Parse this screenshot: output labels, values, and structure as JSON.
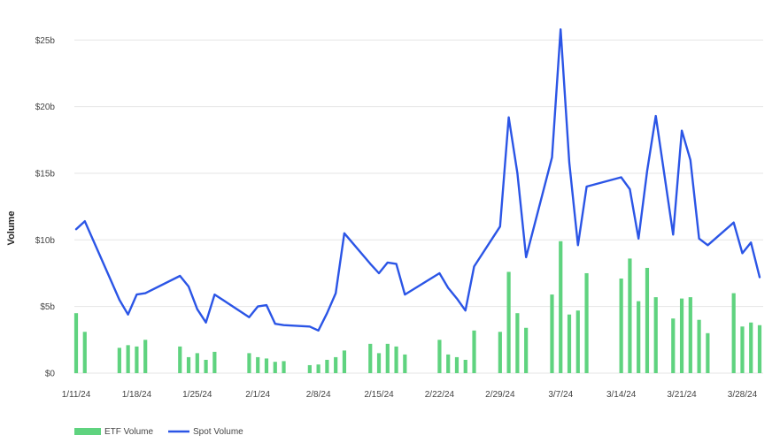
{
  "chart_data": {
    "type": "bar+line",
    "title": "",
    "xlabel": "",
    "ylabel": "Volume",
    "ylim": [
      0,
      27
    ],
    "yticks": [
      0,
      5,
      10,
      15,
      20,
      25
    ],
    "ytick_labels": [
      "$0",
      "$5b",
      "$10b",
      "$15b",
      "$20b",
      "$25b"
    ],
    "xlim": [
      0,
      77
    ],
    "xticks": [
      0,
      7,
      14,
      21,
      28,
      35,
      42,
      49,
      56,
      63,
      70,
      77
    ],
    "xtick_labels": [
      "1/11/24",
      "1/18/24",
      "1/25/24",
      "2/1/24",
      "2/8/24",
      "2/15/24",
      "2/22/24",
      "2/29/24",
      "3/7/24",
      "3/14/24",
      "3/21/24",
      "3/28/24"
    ],
    "grid": true,
    "legend_position": "bottom-left",
    "series": [
      {
        "name": "ETF Volume",
        "type": "bar",
        "color": "#5fd37f",
        "x": [
          0,
          1,
          5,
          6,
          7,
          8,
          12,
          13,
          14,
          15,
          16,
          20,
          21,
          22,
          23,
          24,
          27,
          28,
          29,
          30,
          31,
          34,
          35,
          36,
          37,
          38,
          42,
          43,
          44,
          45,
          46,
          49,
          50,
          51,
          52,
          55,
          56,
          57,
          58,
          59,
          63,
          64,
          65,
          66,
          67,
          69,
          70,
          71,
          72,
          73,
          76,
          77
        ],
        "values": [
          4.5,
          3.1,
          1.9,
          2.1,
          2.0,
          2.5,
          2.0,
          1.2,
          1.5,
          1.0,
          1.6,
          1.5,
          1.2,
          1.1,
          0.85,
          0.9,
          0.6,
          0.65,
          1.0,
          1.2,
          1.7,
          2.2,
          1.5,
          2.2,
          2.0,
          1.4,
          2.5,
          1.4,
          1.2,
          1.0,
          3.2,
          3.1,
          7.6,
          4.5,
          3.4,
          5.9,
          9.9,
          4.4,
          4.7,
          7.5,
          7.1,
          8.6,
          5.4,
          7.9,
          5.7,
          4.1,
          5.6,
          5.7,
          4.0,
          3.0,
          6.0,
          3.5
        ]
      },
      {
        "name": "Spot Volume",
        "type": "line",
        "color": "#2b55e6",
        "x": [
          0,
          1,
          5,
          6,
          7,
          8,
          12,
          13,
          14,
          15,
          16,
          20,
          21,
          22,
          23,
          24,
          27,
          28,
          29,
          30,
          31,
          34,
          35,
          36,
          37,
          38,
          42,
          43,
          44,
          45,
          46,
          49,
          50,
          51,
          52,
          55,
          56,
          57,
          58,
          59,
          63,
          64,
          65,
          66,
          67,
          69,
          70,
          71,
          72,
          73,
          76,
          77
        ],
        "values": [
          10.8,
          11.4,
          5.5,
          4.4,
          5.9,
          6.0,
          7.3,
          6.5,
          4.8,
          3.8,
          5.9,
          4.2,
          5.0,
          5.1,
          3.7,
          3.6,
          3.5,
          3.2,
          4.5,
          6.0,
          10.5,
          8.2,
          7.5,
          8.3,
          8.2,
          5.9,
          7.5,
          6.4,
          5.6,
          4.7,
          8.0,
          11.0,
          19.2,
          15.0,
          8.7,
          16.2,
          25.8,
          15.8,
          9.6,
          14.0,
          14.7,
          13.8,
          10.1,
          15.2,
          19.3,
          10.4,
          18.2,
          16.0,
          10.1,
          9.6,
          11.3,
          9.0
        ]
      }
    ],
    "extra_line_tail": {
      "x": [
        78,
        79
      ],
      "values": [
        9.8,
        7.2
      ]
    },
    "extra_bar_tail": {
      "x": [
        78,
        79
      ],
      "values": [
        3.8,
        3.6
      ]
    }
  }
}
